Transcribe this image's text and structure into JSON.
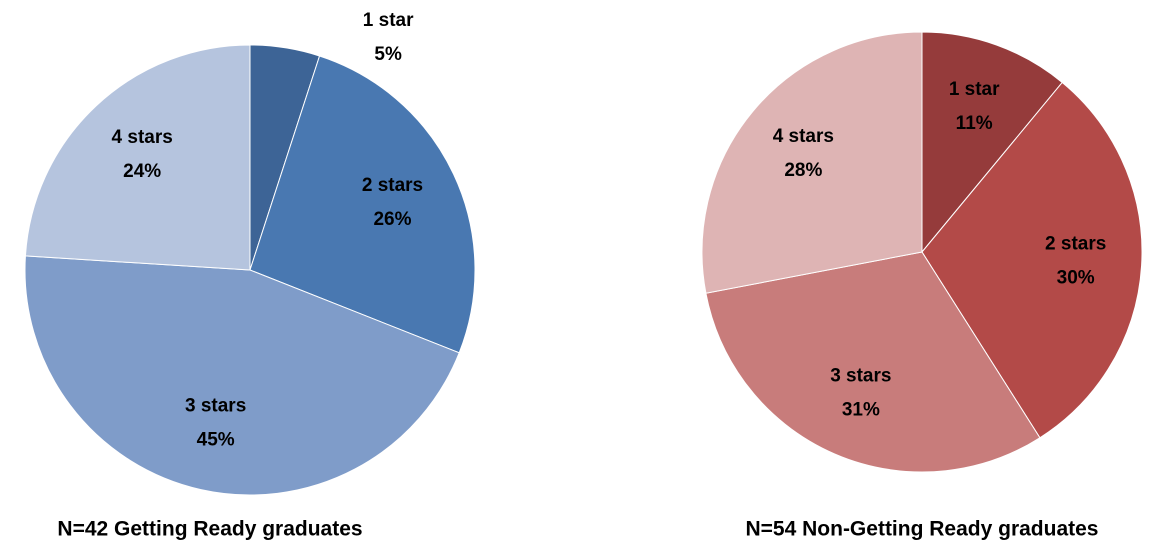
{
  "chart_data": [
    {
      "type": "pie",
      "title": "N=42 Getting Ready graduates",
      "categories": [
        "1 star",
        "2 stars",
        "3 stars",
        "4 stars"
      ],
      "values": [
        5,
        26,
        45,
        24
      ],
      "value_labels": [
        "5%",
        "26%",
        "45%",
        "24%"
      ],
      "colors": [
        "#3d6496",
        "#4978b1",
        "#7f9cc9",
        "#b5c4de"
      ]
    },
    {
      "type": "pie",
      "title": "N=54 Non-Getting Ready graduates",
      "categories": [
        "1 star",
        "2 stars",
        "3 stars",
        "4 stars"
      ],
      "values": [
        11,
        30,
        31,
        28
      ],
      "value_labels": [
        "11%",
        "30%",
        "31%",
        "28%"
      ],
      "colors": [
        "#953b3b",
        "#b34a48",
        "#c87c7b",
        "#deb4b4"
      ]
    }
  ]
}
